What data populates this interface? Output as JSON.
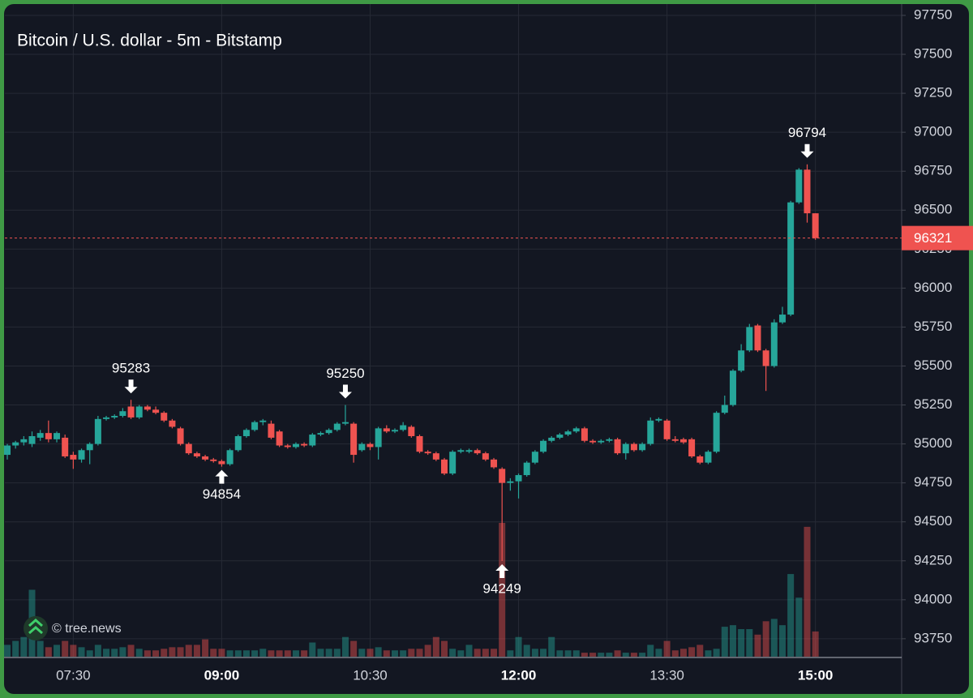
{
  "chart_data": {
    "type": "candlestick",
    "title": "Bitcoin / U.S. dollar - 5m - Bitstamp",
    "watermark": "© tree.news",
    "x": [
      "06:50",
      "06:55",
      "07:00",
      "07:05",
      "07:10",
      "07:15",
      "07:20",
      "07:25",
      "07:30",
      "07:35",
      "07:40",
      "07:45",
      "07:50",
      "07:55",
      "08:00",
      "08:05",
      "08:10",
      "08:15",
      "08:20",
      "08:25",
      "08:30",
      "08:35",
      "08:40",
      "08:45",
      "08:50",
      "08:55",
      "09:00",
      "09:05",
      "09:10",
      "09:15",
      "09:20",
      "09:25",
      "09:30",
      "09:35",
      "09:40",
      "09:45",
      "09:50",
      "09:55",
      "10:00",
      "10:05",
      "10:10",
      "10:15",
      "10:20",
      "10:25",
      "10:30",
      "10:35",
      "10:40",
      "10:45",
      "10:50",
      "10:55",
      "11:00",
      "11:05",
      "11:10",
      "11:15",
      "11:20",
      "11:25",
      "11:30",
      "11:35",
      "11:40",
      "11:45",
      "11:50",
      "11:55",
      "12:00",
      "12:05",
      "12:10",
      "12:15",
      "12:20",
      "12:25",
      "12:30",
      "12:35",
      "12:40",
      "12:45",
      "12:50",
      "12:55",
      "13:00",
      "13:05",
      "13:10",
      "13:15",
      "13:20",
      "13:25",
      "13:30",
      "13:35",
      "13:40",
      "13:45",
      "13:50",
      "13:55",
      "14:00",
      "14:05",
      "14:10",
      "14:15",
      "14:20",
      "14:25",
      "14:30",
      "14:35",
      "14:40",
      "14:45",
      "14:50",
      "14:55",
      "15:00"
    ],
    "open": [
      94930,
      94990,
      95010,
      95000,
      95040,
      95070,
      95030,
      95040,
      94930,
      94900,
      94960,
      95000,
      95160,
      95170,
      95180,
      95240,
      95170,
      95240,
      95220,
      95200,
      95150,
      95100,
      95000,
      94940,
      94920,
      94900,
      94890,
      94870,
      94960,
      95050,
      95090,
      95140,
      95130,
      95080,
      94990,
      94980,
      95000,
      94990,
      95060,
      95070,
      95090,
      95130,
      95130,
      94960,
      95000,
      94980,
      95100,
      95080,
      95090,
      95110,
      95050,
      94950,
      94940,
      94900,
      94810,
      94950,
      94950,
      94960,
      94940,
      94900,
      94840,
      94750,
      94760,
      94800,
      94880,
      94950,
      95020,
      95040,
      95060,
      95080,
      95100,
      95020,
      95010,
      95020,
      95030,
      94940,
      95000,
      94960,
      95000,
      95150,
      95150,
      95030,
      95030,
      95030,
      94920,
      94880,
      94950,
      95200,
      95250,
      95470,
      95600,
      95760,
      95600,
      95500,
      95780,
      95830,
      96550,
      96760,
      96480
    ],
    "high": [
      95000,
      95020,
      95050,
      95080,
      95090,
      95150,
      95080,
      95060,
      94950,
      94970,
      95010,
      95180,
      95180,
      95190,
      95230,
      95283,
      95250,
      95250,
      95240,
      95210,
      95160,
      95110,
      95010,
      94950,
      94930,
      94910,
      94900,
      94970,
      95060,
      95100,
      95150,
      95160,
      95150,
      95090,
      95000,
      95010,
      95010,
      95070,
      95080,
      95100,
      95140,
      95250,
      95140,
      95010,
      95010,
      95110,
      95120,
      95100,
      95140,
      95120,
      95060,
      94960,
      94950,
      94910,
      94960,
      94970,
      94970,
      94970,
      94950,
      94910,
      94850,
      94780,
      94810,
      94890,
      94960,
      95030,
      95050,
      95070,
      95090,
      95110,
      95110,
      95030,
      95030,
      95040,
      95040,
      95010,
      95010,
      95010,
      95170,
      95170,
      95160,
      95050,
      95040,
      95040,
      94930,
      94960,
      95210,
      95310,
      95480,
      95640,
      95770,
      95770,
      95610,
      95800,
      95880,
      96560,
      96770,
      96794,
      96480
    ],
    "low": [
      94900,
      94970,
      94990,
      94980,
      95020,
      95010,
      95010,
      94910,
      94840,
      94880,
      94870,
      94990,
      95150,
      95160,
      95170,
      95160,
      95160,
      95210,
      95190,
      95140,
      95100,
      94990,
      94930,
      94910,
      94890,
      94880,
      94854,
      94860,
      94950,
      95040,
      95080,
      95120,
      95030,
      94980,
      94970,
      94970,
      94980,
      94980,
      95050,
      95060,
      95080,
      95120,
      94880,
      94950,
      94960,
      94900,
      95070,
      95070,
      95080,
      95040,
      94940,
      94930,
      94890,
      94800,
      94800,
      94940,
      94940,
      94930,
      94890,
      94840,
      94249,
      94700,
      94650,
      94790,
      94870,
      94940,
      95010,
      95030,
      95050,
      95070,
      95010,
      95000,
      95000,
      95010,
      94930,
      94900,
      94950,
      94950,
      94990,
      95140,
      95020,
      95010,
      95000,
      94910,
      94870,
      94870,
      94940,
      95190,
      95240,
      95460,
      95590,
      95590,
      95340,
      95490,
      95770,
      95820,
      96540,
      96420,
      96310
    ],
    "close": [
      94990,
      95010,
      95030,
      95050,
      95070,
      95030,
      95070,
      94920,
      94900,
      94960,
      95000,
      95160,
      95170,
      95180,
      95210,
      95170,
      95240,
      95220,
      95200,
      95150,
      95110,
      95000,
      94940,
      94920,
      94900,
      94890,
      94870,
      94960,
      95050,
      95090,
      95140,
      95150,
      95040,
      94990,
      94980,
      95000,
      94990,
      95060,
      95070,
      95090,
      95130,
      95140,
      94930,
      95000,
      94980,
      95100,
      95080,
      95090,
      95120,
      95050,
      94950,
      94940,
      94900,
      94810,
      94950,
      94960,
      94960,
      94940,
      94900,
      94850,
      94750,
      94760,
      94800,
      94880,
      94950,
      95020,
      95040,
      95060,
      95080,
      95100,
      95020,
      95010,
      95020,
      95030,
      94940,
      95000,
      94960,
      95000,
      95150,
      95160,
      95030,
      95020,
      95010,
      94920,
      94880,
      94950,
      95200,
      95250,
      95470,
      95600,
      95750,
      95600,
      95500,
      95780,
      95830,
      96550,
      96760,
      96480,
      96321
    ],
    "volume": [
      15,
      20,
      25,
      85,
      20,
      12,
      15,
      20,
      15,
      12,
      8,
      15,
      10,
      10,
      12,
      15,
      10,
      8,
      8,
      10,
      12,
      12,
      15,
      15,
      22,
      10,
      10,
      8,
      8,
      8,
      8,
      10,
      8,
      8,
      8,
      8,
      8,
      18,
      10,
      10,
      10,
      25,
      20,
      10,
      10,
      12,
      8,
      8,
      8,
      10,
      10,
      15,
      25,
      20,
      10,
      8,
      15,
      10,
      10,
      10,
      170,
      8,
      25,
      15,
      10,
      10,
      25,
      8,
      8,
      8,
      5,
      5,
      5,
      5,
      8,
      5,
      5,
      5,
      15,
      10,
      20,
      8,
      10,
      12,
      15,
      8,
      10,
      38,
      40,
      35,
      35,
      28,
      45,
      48,
      40,
      105,
      75,
      165,
      32
    ],
    "up_color": "#26a69a",
    "down_color": "#ef5350",
    "ylim": [
      93635,
      97807
    ],
    "yticks": [
      93750,
      94000,
      94250,
      94500,
      94750,
      95000,
      95250,
      95500,
      95750,
      96000,
      96250,
      96500,
      96750,
      97000,
      97250,
      97500,
      97750
    ],
    "xticks": [
      "07:30",
      "09:00",
      "10:30",
      "12:00",
      "13:30",
      "15:00"
    ],
    "grid": true,
    "last_price": 96321,
    "annotations": [
      {
        "x": "08:05",
        "value": 95283
      },
      {
        "x": "09:00",
        "value": 94854
      },
      {
        "x": "10:15",
        "value": 95250
      },
      {
        "x": "11:50",
        "value": 94249
      },
      {
        "x": "14:55",
        "value": 96794
      }
    ]
  }
}
